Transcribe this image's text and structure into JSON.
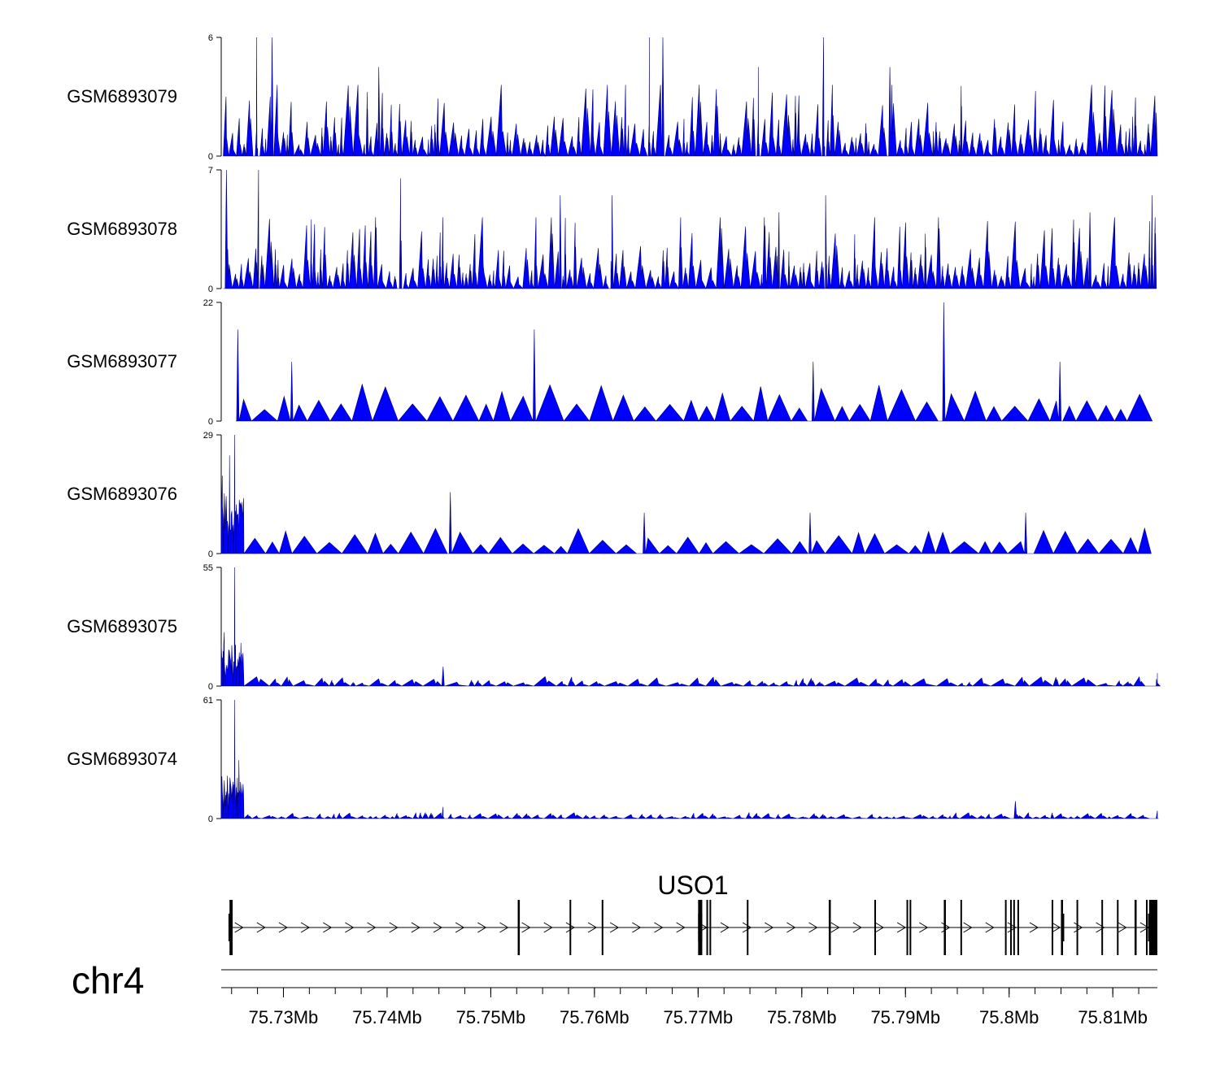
{
  "colors": {
    "signal": "#0000ff",
    "signal_stroke": "#00007a",
    "axis": "#000000",
    "gene": "#000000"
  },
  "chart_data": {
    "type": "area",
    "title": "",
    "chromosome": "chr4",
    "region": {
      "start_mb": 75.724,
      "end_mb": 75.8143
    },
    "xlabel": "",
    "x_ticks_mb": [
      75.73,
      75.74,
      75.75,
      75.76,
      75.77,
      75.78,
      75.79,
      75.8,
      75.81
    ],
    "x_tick_labels": [
      "75.73Mb",
      "75.74Mb",
      "75.75Mb",
      "75.76Mb",
      "75.77Mb",
      "75.78Mb",
      "75.79Mb",
      "75.8Mb",
      "75.81Mb"
    ],
    "minor_tick_step_mb": 0.0025,
    "tracks": [
      {
        "name": "GSM6893079",
        "ymin": 0,
        "ymin_label": "0",
        "ymax": 6,
        "ymax_label": "6",
        "profile": "uniform",
        "base": 1.6,
        "spike_count": 150,
        "peaks": [
          [
            75.7274,
            6
          ],
          [
            75.7289,
            6
          ],
          [
            75.7392,
            4.5
          ],
          [
            75.7653,
            6
          ],
          [
            75.7666,
            6
          ],
          [
            75.7821,
            6
          ],
          [
            75.7758,
            4.5
          ],
          [
            75.7885,
            4.5
          ]
        ]
      },
      {
        "name": "GSM6893078",
        "ymin": 0,
        "ymin_label": "0",
        "ymax": 7,
        "ymax_label": "7",
        "profile": "uniform",
        "base": 2.0,
        "spike_count": 150,
        "peaks": [
          [
            75.7245,
            7
          ],
          [
            75.7276,
            7
          ],
          [
            75.7413,
            6.5
          ],
          [
            75.7567,
            5.5
          ],
          [
            75.7617,
            5.5
          ],
          [
            75.7778,
            4.5
          ],
          [
            75.7823,
            5.5
          ],
          [
            75.8078,
            4.5
          ],
          [
            75.8138,
            5.5
          ]
        ]
      },
      {
        "name": "GSM6893077",
        "ymin": 0,
        "ymin_label": "0",
        "ymax": 22,
        "ymax_label": "22",
        "profile": "sparse",
        "base": 5.5,
        "spike_count": 45,
        "peaks": [
          [
            75.7256,
            17
          ],
          [
            75.7308,
            11
          ],
          [
            75.7542,
            17
          ],
          [
            75.7937,
            22
          ],
          [
            75.7811,
            11
          ],
          [
            75.8049,
            11
          ]
        ]
      },
      {
        "name": "GSM6893076",
        "ymin": 0,
        "ymin_label": "0",
        "ymax": 29,
        "ymax_label": "29",
        "profile": "sparse",
        "base": 5.0,
        "spike_count": 45,
        "peaks": [
          [
            75.7241,
            19
          ],
          [
            75.7248,
            24
          ],
          [
            75.7253,
            29
          ],
          [
            75.7461,
            15
          ],
          [
            75.7648,
            10
          ],
          [
            75.7808,
            10
          ],
          [
            75.8016,
            10
          ]
        ],
        "early_cluster": {
          "start_mb": 75.724,
          "end_mb": 75.7262,
          "level": 15
        }
      },
      {
        "name": "GSM6893075",
        "ymin": 0,
        "ymin_label": "0",
        "ymax": 55,
        "ymax_label": "55",
        "profile": "low",
        "base": 3.5,
        "spike_count": 60,
        "peaks": [
          [
            75.7243,
            25
          ],
          [
            75.7253,
            55
          ],
          [
            75.7259,
            20
          ],
          [
            75.7454,
            9
          ],
          [
            75.8143,
            6
          ]
        ],
        "early_cluster": {
          "start_mb": 75.724,
          "end_mb": 75.7262,
          "level": 20
        }
      },
      {
        "name": "GSM6893074",
        "ymin": 0,
        "ymin_label": "0",
        "ymax": 61,
        "ymax_label": "61",
        "profile": "low",
        "base": 2.5,
        "spike_count": 90,
        "peaks": [
          [
            75.7246,
            22
          ],
          [
            75.7253,
            61
          ],
          [
            75.7257,
            30
          ],
          [
            75.7454,
            6
          ],
          [
            75.8006,
            9
          ],
          [
            75.8143,
            4
          ]
        ],
        "early_cluster": {
          "start_mb": 75.724,
          "end_mb": 75.7262,
          "level": 22
        }
      }
    ],
    "gene": {
      "name": "USO1",
      "strand": "+",
      "start_mb": 75.7248,
      "end_mb": 75.8143,
      "exons": [
        {
          "start_mb": 75.7248,
          "end_mb": 75.7251
        },
        {
          "start_mb": 75.7526,
          "end_mb": 75.7528
        },
        {
          "start_mb": 75.7576,
          "end_mb": 75.7577
        },
        {
          "start_mb": 75.7607,
          "end_mb": 75.7608
        },
        {
          "start_mb": 75.77,
          "end_mb": 75.7704
        },
        {
          "start_mb": 75.7708,
          "end_mb": 75.7709
        },
        {
          "start_mb": 75.7711,
          "end_mb": 75.7712
        },
        {
          "start_mb": 75.7747,
          "end_mb": 75.7748
        },
        {
          "start_mb": 75.7826,
          "end_mb": 75.7828
        },
        {
          "start_mb": 75.787,
          "end_mb": 75.7871
        },
        {
          "start_mb": 75.7901,
          "end_mb": 75.7902
        },
        {
          "start_mb": 75.7904,
          "end_mb": 75.7905
        },
        {
          "start_mb": 75.7937,
          "end_mb": 75.7939
        },
        {
          "start_mb": 75.7953,
          "end_mb": 75.7954
        },
        {
          "start_mb": 75.7996,
          "end_mb": 75.7997
        },
        {
          "start_mb": 75.8001,
          "end_mb": 75.8002
        },
        {
          "start_mb": 75.8004,
          "end_mb": 75.8005
        },
        {
          "start_mb": 75.8008,
          "end_mb": 75.8009
        },
        {
          "start_mb": 75.8041,
          "end_mb": 75.8042
        },
        {
          "start_mb": 75.805,
          "end_mb": 75.8052
        },
        {
          "start_mb": 75.8065,
          "end_mb": 75.8066
        },
        {
          "start_mb": 75.8089,
          "end_mb": 75.809
        },
        {
          "start_mb": 75.8104,
          "end_mb": 75.8105
        },
        {
          "start_mb": 75.8121,
          "end_mb": 75.8123
        },
        {
          "start_mb": 75.8132,
          "end_mb": 75.8133
        },
        {
          "start_mb": 75.8135,
          "end_mb": 75.8143
        }
      ],
      "thick_exons": [
        {
          "start_mb": 75.7247,
          "end_mb": 75.7251
        },
        {
          "start_mb": 75.77,
          "end_mb": 75.7704
        },
        {
          "start_mb": 75.805,
          "end_mb": 75.8052
        },
        {
          "start_mb": 75.8134,
          "end_mb": 75.8143
        }
      ]
    }
  }
}
